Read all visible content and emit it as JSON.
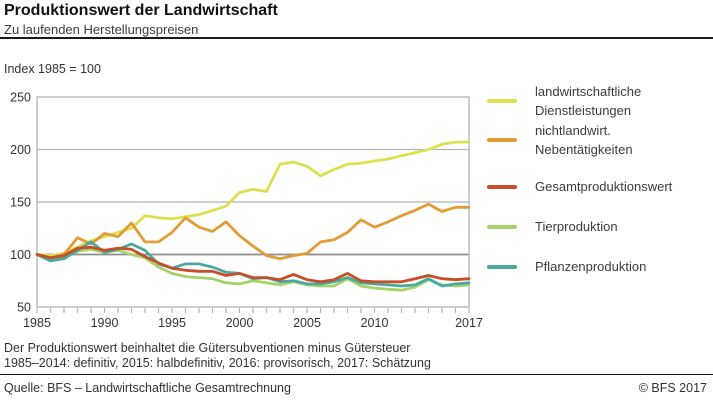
{
  "header": {
    "title": "Produktionswert der Landwirtschaft",
    "subtitle": "Zu laufenden Herstellungspreisen"
  },
  "index_note": "Index 1985 = 100",
  "chart_data": {
    "type": "line",
    "x_label": "",
    "y_label": "Index 1985 = 100",
    "x": [
      1985,
      1986,
      1987,
      1988,
      1989,
      1990,
      1991,
      1992,
      1993,
      1994,
      1995,
      1996,
      1997,
      1998,
      1999,
      2000,
      2001,
      2002,
      2003,
      2004,
      2005,
      2006,
      2007,
      2008,
      2009,
      2010,
      2011,
      2012,
      2013,
      2014,
      2015,
      2016,
      2017
    ],
    "x_tick_years": [
      1985,
      1990,
      1995,
      2000,
      2005,
      2010,
      2017
    ],
    "x_tick_labels": [
      "1985",
      "1990",
      "1995",
      "2000",
      "2005",
      "2010",
      "2017"
    ],
    "ylim": [
      50,
      250
    ],
    "y_ticks": [
      50,
      100,
      150,
      200,
      250
    ],
    "grid": "horizontal",
    "baseline_value": 100,
    "legend_position": "right",
    "draw_order": [
      0,
      1,
      3,
      4,
      2
    ],
    "series": [
      {
        "name": "landwirtschaftliche Dienstleistungen",
        "color": "#dde04f",
        "values": [
          100,
          99,
          101,
          107,
          113,
          117,
          121,
          125,
          137,
          135,
          134,
          136,
          138,
          142,
          146,
          159,
          162,
          160,
          186,
          188,
          184,
          175,
          181,
          186,
          187,
          189,
          191,
          194,
          197,
          200,
          205,
          207,
          207
        ]
      },
      {
        "name": "nichtlandwirt. Nebentätigkeiten",
        "color": "#e39b36",
        "values": [
          100,
          97,
          100,
          116,
          110,
          120,
          117,
          130,
          112,
          112,
          121,
          135,
          126,
          122,
          131,
          118,
          108,
          99,
          96,
          99,
          101,
          112,
          114,
          121,
          133,
          126,
          131,
          137,
          142,
          148,
          141,
          145,
          145
        ]
      },
      {
        "name": "Gesamtproduktionswert",
        "color": "#c74e28",
        "values": [
          100,
          97,
          99,
          106,
          107,
          104,
          106,
          105,
          98,
          92,
          87,
          85,
          84,
          84,
          80,
          82,
          78,
          78,
          76,
          81,
          76,
          74,
          76,
          82,
          75,
          74,
          74,
          74,
          77,
          80,
          77,
          76,
          77
        ]
      },
      {
        "name": "Tierproduktion",
        "color": "#a5d368",
        "values": [
          100,
          95,
          97,
          103,
          105,
          102,
          104,
          100,
          97,
          88,
          82,
          79,
          78,
          77,
          73,
          72,
          75,
          73,
          71,
          74,
          71,
          70,
          70,
          77,
          70,
          68,
          67,
          66,
          69,
          76,
          71,
          70,
          71
        ]
      },
      {
        "name": "Pflanzenproduktion",
        "color": "#49a8a0",
        "values": [
          100,
          94,
          96,
          104,
          112,
          102,
          105,
          110,
          104,
          91,
          87,
          91,
          91,
          88,
          83,
          82,
          77,
          78,
          74,
          75,
          72,
          72,
          74,
          78,
          73,
          72,
          71,
          70,
          71,
          77,
          70,
          72,
          73
        ]
      }
    ]
  },
  "legend": {
    "items": [
      {
        "line1": "landwirtschaftliche",
        "line2": "Dienstleistungen",
        "color": "#dde04f"
      },
      {
        "line1": "nichtlandwirt.",
        "line2": "Nebentätigkeiten",
        "color": "#e39b36"
      },
      {
        "line1": "Gesamtproduktionswert",
        "line2": "",
        "color": "#c74e28"
      },
      {
        "line1": "Tierproduktion",
        "line2": "",
        "color": "#a5d368"
      },
      {
        "line1": "Pflanzenproduktion",
        "line2": "",
        "color": "#49a8a0"
      }
    ]
  },
  "footnotes": {
    "line1": "Der Produktionswert beinhaltet die Gütersubventionen minus Gütersteuer",
    "line2": "1985–2014: definitiv, 2015: halbdefinitiv, 2016: provisorisch, 2017: Schätzung"
  },
  "footer": {
    "source": "Quelle: BFS – Landwirtschaftliche Gesamtrechnung",
    "copyright": "© BFS  2017"
  }
}
